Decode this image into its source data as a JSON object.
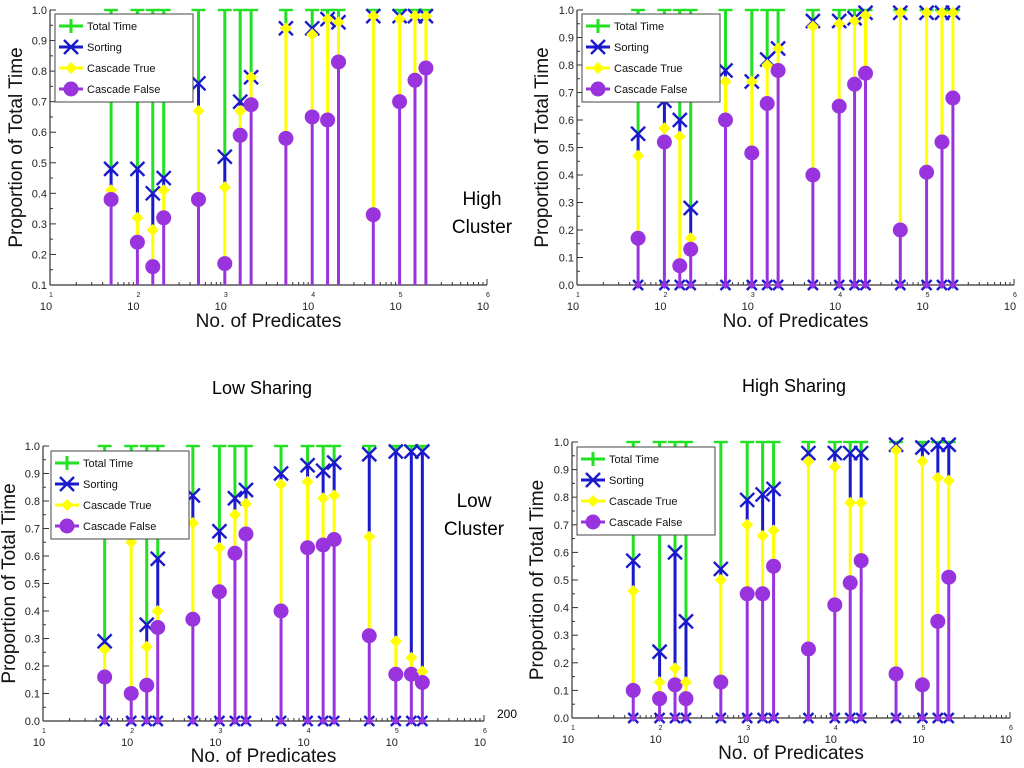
{
  "labels": {
    "high_cluster": [
      "High",
      "Cluster"
    ],
    "low_cluster": [
      "Low",
      "Cluster"
    ],
    "low_sharing": "Low Sharing",
    "high_sharing": "High Sharing",
    "page_number": "200"
  },
  "colors": {
    "total_time": "#22e022",
    "sorting": "#1a1acc",
    "cascade_true": "#ffff00",
    "cascade_false": "#9933dd",
    "axis": "#333333"
  },
  "chart_data": [
    {
      "id": "low-sharing-high-cluster",
      "type": "scatter",
      "title": "",
      "xlabel": "No. of Predicates",
      "ylabel": "Proportion of Total Time",
      "xscale": "log",
      "xlim": [
        10,
        1000000
      ],
      "ylim": [
        0.1,
        1.0
      ],
      "yticks": [
        "0.1",
        "0.2",
        "0.3",
        "0.4",
        "0.5",
        "0.6",
        "0.7",
        "0.8",
        "0.9",
        "1.0"
      ],
      "xtick_exponents": [
        "1",
        "2",
        "3",
        "4",
        "5",
        "6"
      ],
      "legend": [
        "Total Time",
        "Sorting",
        "Cascade True",
        "Cascade False"
      ],
      "legend_position": "top-left",
      "x": [
        50,
        100,
        150,
        200,
        500,
        1000,
        1500,
        2000,
        5000,
        10000,
        15000,
        20000,
        50000,
        100000,
        150000,
        200000
      ],
      "series": [
        {
          "name": "Total Time",
          "values": [
            1,
            1,
            1,
            1,
            1,
            1,
            1,
            1,
            1,
            1,
            1,
            1,
            1,
            1,
            1,
            1
          ]
        },
        {
          "name": "Sorting",
          "values": [
            0.48,
            0.48,
            0.4,
            0.45,
            0.76,
            0.52,
            0.7,
            0.78,
            0.94,
            0.94,
            0.97,
            0.96,
            0.98,
            0.98,
            0.98,
            0.98
          ]
        },
        {
          "name": "Cascade True",
          "values": [
            0.41,
            0.32,
            0.28,
            0.41,
            0.67,
            0.42,
            0.67,
            0.78,
            0.94,
            0.92,
            0.97,
            0.96,
            0.98,
            0.97,
            0.98,
            0.98
          ]
        },
        {
          "name": "Cascade False",
          "values": [
            0.38,
            0.24,
            0.16,
            0.32,
            0.38,
            0.17,
            0.59,
            0.69,
            0.58,
            0.65,
            0.64,
            0.83,
            0.33,
            0.7,
            0.77,
            0.81
          ]
        }
      ]
    },
    {
      "id": "high-sharing-high-cluster",
      "type": "scatter",
      "title": "",
      "xlabel": "No. of Predicates",
      "ylabel": "Proportion of Total Time",
      "xscale": "log",
      "xlim": [
        10,
        1000000
      ],
      "ylim": [
        0.0,
        1.0
      ],
      "yticks": [
        "0.0",
        "0.1",
        "0.2",
        "0.3",
        "0.4",
        "0.5",
        "0.6",
        "0.7",
        "0.8",
        "0.9",
        "1.0"
      ],
      "xtick_exponents": [
        "1",
        "2",
        "3",
        "4",
        "5",
        "6"
      ],
      "legend": [
        "Total Time",
        "Sorting",
        "Cascade True",
        "Cascade False"
      ],
      "legend_position": "top-left",
      "x": [
        50,
        100,
        150,
        200,
        500,
        1000,
        1500,
        2000,
        5000,
        10000,
        15000,
        20000,
        50000,
        100000,
        150000,
        200000
      ],
      "series": [
        {
          "name": "Total Time",
          "values": [
            1,
            1,
            1,
            1,
            1,
            1,
            1,
            1,
            1,
            1,
            1,
            1,
            1,
            1,
            1,
            1
          ]
        },
        {
          "name": "Sorting",
          "values": [
            0.55,
            0.67,
            0.6,
            0.28,
            0.78,
            0.74,
            0.82,
            0.86,
            0.96,
            0.96,
            0.97,
            0.99,
            0.99,
            0.99,
            0.99,
            0.99
          ]
        },
        {
          "name": "Cascade True",
          "values": [
            0.47,
            0.57,
            0.54,
            0.17,
            0.74,
            0.74,
            0.8,
            0.86,
            0.94,
            0.95,
            0.96,
            0.98,
            0.99,
            0.99,
            0.99,
            0.99
          ]
        },
        {
          "name": "Cascade False",
          "values": [
            0.17,
            0.52,
            0.07,
            0.13,
            0.6,
            0.48,
            0.66,
            0.78,
            0.4,
            0.65,
            0.73,
            0.77,
            0.2,
            0.41,
            0.52,
            0.68
          ]
        }
      ]
    },
    {
      "id": "low-sharing-low-cluster",
      "type": "scatter",
      "title": "",
      "xlabel": "No. of Predicates",
      "ylabel": "Proportion of Total Time",
      "xscale": "log",
      "xlim": [
        10,
        1000000
      ],
      "ylim": [
        0.0,
        1.0
      ],
      "yticks": [
        "0.0",
        "0.1",
        "0.2",
        "0.3",
        "0.4",
        "0.5",
        "0.6",
        "0.7",
        "0.8",
        "0.9",
        "1.0"
      ],
      "xtick_exponents": [
        "1",
        "2",
        "3",
        "4",
        "5",
        "6"
      ],
      "legend": [
        "Total Time",
        "Sorting",
        "Cascade True",
        "Cascade False"
      ],
      "legend_position": "top-left",
      "x": [
        50,
        100,
        150,
        200,
        500,
        1000,
        1500,
        2000,
        5000,
        10000,
        15000,
        20000,
        50000,
        100000,
        150000,
        200000
      ],
      "series": [
        {
          "name": "Total Time",
          "values": [
            1,
            1,
            1,
            1,
            1,
            1,
            1,
            1,
            1,
            1,
            1,
            1,
            1,
            1,
            1,
            1
          ]
        },
        {
          "name": "Sorting",
          "values": [
            0.29,
            0.7,
            0.35,
            0.59,
            0.82,
            0.69,
            0.81,
            0.84,
            0.9,
            0.93,
            0.91,
            0.94,
            0.97,
            0.98,
            0.98,
            0.98
          ]
        },
        {
          "name": "Cascade True",
          "values": [
            0.26,
            0.65,
            0.27,
            0.4,
            0.72,
            0.63,
            0.75,
            0.79,
            0.86,
            0.87,
            0.81,
            0.82,
            0.67,
            0.29,
            0.23,
            0.18
          ]
        },
        {
          "name": "Cascade False",
          "values": [
            0.16,
            0.1,
            0.13,
            0.34,
            0.37,
            0.47,
            0.61,
            0.68,
            0.4,
            0.63,
            0.64,
            0.66,
            0.31,
            0.17,
            0.17,
            0.14
          ]
        }
      ]
    },
    {
      "id": "high-sharing-low-cluster",
      "type": "scatter",
      "title": "",
      "xlabel": "No. of Predicates",
      "ylabel": "Proportion of Total Time",
      "xscale": "log",
      "xlim": [
        10,
        1000000
      ],
      "ylim": [
        0.0,
        1.0
      ],
      "yticks": [
        "0.0",
        "0.1",
        "0.2",
        "0.3",
        "0.4",
        "0.5",
        "0.6",
        "0.7",
        "0.8",
        "0.9",
        "1.0"
      ],
      "xtick_exponents": [
        "1",
        "2",
        "3",
        "4",
        "5",
        "6"
      ],
      "legend": [
        "Total Time",
        "Sorting",
        "Cascade True",
        "Cascade False"
      ],
      "legend_position": "top-left",
      "x": [
        50,
        100,
        150,
        200,
        500,
        1000,
        1500,
        2000,
        5000,
        10000,
        15000,
        20000,
        50000,
        100000,
        150000,
        200000
      ],
      "series": [
        {
          "name": "Total Time",
          "values": [
            1,
            1,
            1,
            1,
            1,
            1,
            1,
            1,
            1,
            1,
            1,
            1,
            1,
            1,
            1,
            1
          ]
        },
        {
          "name": "Sorting",
          "values": [
            0.57,
            0.24,
            0.6,
            0.35,
            0.54,
            0.79,
            0.81,
            0.83,
            0.96,
            0.96,
            0.96,
            0.96,
            0.99,
            0.98,
            0.99,
            0.99
          ]
        },
        {
          "name": "Cascade True",
          "values": [
            0.46,
            0.13,
            0.18,
            0.13,
            0.5,
            0.7,
            0.66,
            0.68,
            0.93,
            0.91,
            0.78,
            0.78,
            0.97,
            0.93,
            0.87,
            0.86
          ]
        },
        {
          "name": "Cascade False",
          "values": [
            0.1,
            0.07,
            0.12,
            0.07,
            0.13,
            0.45,
            0.45,
            0.55,
            0.25,
            0.41,
            0.49,
            0.57,
            0.16,
            0.12,
            0.35,
            0.51
          ]
        }
      ]
    }
  ]
}
